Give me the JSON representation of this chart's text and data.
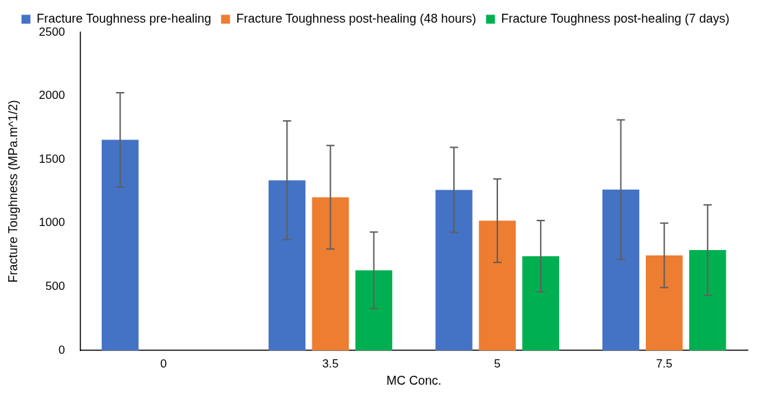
{
  "chart_data": {
    "type": "bar",
    "xlabel": "MC Conc.",
    "ylabel": "Fracture Toughness (MPa.m^1/2)",
    "categories": [
      "0",
      "3.5",
      "5",
      "7.5"
    ],
    "series": [
      {
        "name": "Fracture Toughness pre-healing",
        "color": "#4472c4",
        "values": [
          1655,
          1337,
          1261,
          1263
        ],
        "errors": [
          370,
          466,
          334,
          549
        ]
      },
      {
        "name": "Fracture Toughness post-healing (48 hours)",
        "color": "#ed7d31",
        "values": [
          0,
          1203,
          1019,
          747
        ],
        "errors": [
          null,
          407,
          328,
          253
        ]
      },
      {
        "name": "Fracture Toughness post-healing (7 days)",
        "color": "#00b050",
        "values": [
          0,
          629,
          740,
          788
        ],
        "errors": [
          null,
          301,
          280,
          355
        ]
      }
    ],
    "ylim": [
      0,
      2500
    ],
    "yticks": [
      0,
      500,
      1000,
      1500,
      2000,
      2500
    ],
    "grid": false,
    "legend": "top"
  }
}
